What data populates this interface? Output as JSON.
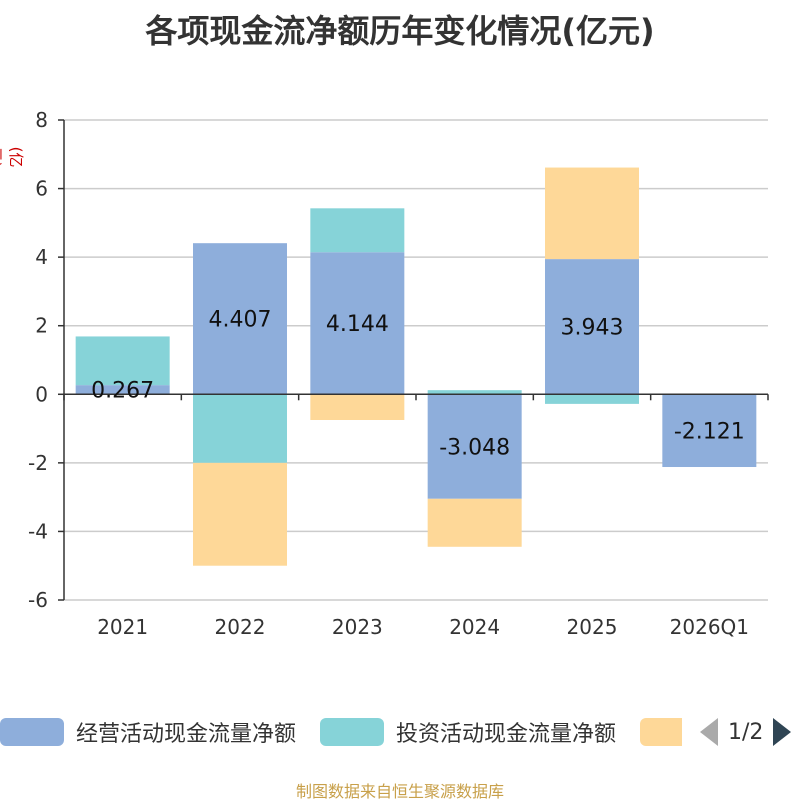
{
  "title": "各项现金流净额历年变化情况(亿元)",
  "unit_label": "(亿元)",
  "source": "制图数据来自恒生聚源数据库",
  "pager": {
    "text": "1/2"
  },
  "colors": {
    "operating": "#8eaedb",
    "investing": "#86d3d8",
    "financing": "#fed898"
  },
  "chart_data": {
    "type": "bar",
    "stacked": true,
    "categories": [
      "2021",
      "2022",
      "2023",
      "2024",
      "2025",
      "2026Q1"
    ],
    "ylim": [
      -6,
      8
    ],
    "yticks": [
      -6,
      -4,
      -2,
      0,
      2,
      4,
      6,
      8
    ],
    "grid": true,
    "legend_position": "bottom",
    "series": [
      {
        "name": "经营活动现金流量净额",
        "color": "#8eaedb",
        "values": [
          0.267,
          4.407,
          4.144,
          -3.048,
          3.943,
          -2.121
        ],
        "labels": [
          "0.267",
          "4.407",
          "4.144",
          "-3.048",
          "3.943",
          "-2.121"
        ]
      },
      {
        "name": "投资活动现金流量净额",
        "color": "#86d3d8",
        "values": [
          1.42,
          -2.0,
          1.28,
          0.12,
          -0.28,
          0
        ]
      },
      {
        "name": "",
        "color": "#fed898",
        "values": [
          0,
          -3.0,
          -0.75,
          -1.4,
          2.67,
          0
        ]
      }
    ]
  }
}
